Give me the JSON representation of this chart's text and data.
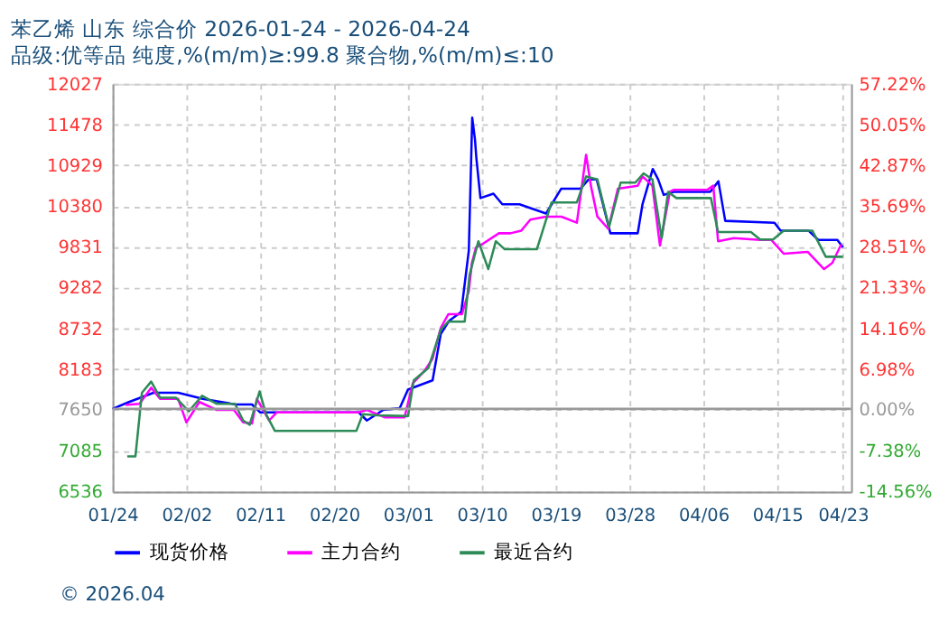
{
  "chart_data": {
    "type": "line",
    "title": "苯乙烯 山东 综合价 2026-01-24 - 2026-04-24",
    "subtitle": "品级:优等品 纯度,%(m/m)≥:99.8 聚合物,%(m/m)≤:10",
    "xlim": [
      "2026-01-24",
      "2026-04-24"
    ],
    "xticks": [
      {
        "value": "2026-01-24",
        "label": "01/24"
      },
      {
        "value": "2026-02-02",
        "label": "02/02"
      },
      {
        "value": "2026-02-11",
        "label": "02/11"
      },
      {
        "value": "2026-02-20",
        "label": "02/20"
      },
      {
        "value": "2026-03-01",
        "label": "03/01"
      },
      {
        "value": "2026-03-10",
        "label": "03/10"
      },
      {
        "value": "2026-03-19",
        "label": "03/19"
      },
      {
        "value": "2026-03-28",
        "label": "03/28"
      },
      {
        "value": "2026-04-06",
        "label": "04/06"
      },
      {
        "value": "2026-04-15",
        "label": "04/15"
      },
      {
        "value": "2026-04-23",
        "label": "04/23"
      }
    ],
    "ylim": [
      6536,
      12027
    ],
    "yticks": [
      6536,
      7085,
      7650,
      8183,
      8732,
      9282,
      9831,
      10380,
      10929,
      11478,
      12027
    ],
    "y2lim": [
      -14.56,
      57.22
    ],
    "y2ticks": [
      {
        "value": -14.56,
        "label": "-14.56%"
      },
      {
        "value": -7.38,
        "label": "-7.38%"
      },
      {
        "value": 0,
        "label": "0.00%"
      },
      {
        "value": 6.98,
        "label": "6.98%"
      },
      {
        "value": 14.16,
        "label": "14.16%"
      },
      {
        "value": 21.33,
        "label": "21.33%"
      },
      {
        "value": 28.51,
        "label": "28.51%"
      },
      {
        "value": 35.69,
        "label": "35.69%"
      },
      {
        "value": 42.87,
        "label": "42.87%"
      },
      {
        "value": 50.05,
        "label": "50.05%"
      },
      {
        "value": 57.22,
        "label": "57.22%"
      }
    ],
    "grid": true,
    "legend": "bottom",
    "line_style": "solid",
    "marker": "none",
    "ref_lines": [
      {
        "axis": "y",
        "value": 7650,
        "color": "#999999"
      }
    ],
    "annotations": [
      "© 2026.04"
    ],
    "series": [
      {
        "name": "现货价格",
        "color": "#0000ff",
        "x": [
          "2026-01-24",
          "2026-01-26",
          "2026-01-29",
          "2026-02-01",
          "2026-02-04",
          "2026-02-08",
          "2026-02-10",
          "2026-02-11",
          "2026-02-23",
          "2026-02-24",
          "2026-02-26",
          "2026-02-28",
          "2026-03-01",
          "2026-03-04",
          "2026-03-05",
          "2026-03-06",
          "2026-03-07T12:00",
          "2026-03-08T10:00",
          "2026-03-08T20:00",
          "2026-03-09T04:00",
          "2026-03-09T08:00",
          "2026-03-09T20:00",
          "2026-03-11T10:00",
          "2026-03-12T12:00",
          "2026-03-14T14:00",
          "2026-03-17T20:00",
          "2026-03-19T16:00",
          "2026-03-22",
          "2026-03-23",
          "2026-03-24",
          "2026-03-25T16:00",
          "2026-03-29",
          "2026-03-29T14:00",
          "2026-03-30T20:00",
          "2026-03-31T12:00",
          "2026-04-01T04:00",
          "2026-04-02T08:00",
          "2026-04-06T20:00",
          "2026-04-07T20:00",
          "2026-04-08T16:00",
          "2026-04-14T16:00",
          "2026-04-15T10:00",
          "2026-04-18T20:00",
          "2026-04-20",
          "2026-04-22T08:00",
          "2026-04-23"
        ],
        "values": [
          7650,
          7743,
          7868,
          7868,
          7785,
          7710,
          7710,
          7603,
          7603,
          7494,
          7636,
          7661,
          7910,
          8035,
          8659,
          8833,
          8958,
          9782,
          11570,
          11278,
          11029,
          10488,
          10547,
          10405,
          10405,
          10280,
          10613,
          10613,
          10738,
          10738,
          10014,
          10014,
          10405,
          10879,
          10738,
          10530,
          10572,
          10572,
          10713,
          10181,
          10156,
          10048,
          10048,
          9924,
          9924,
          9824
        ]
      },
      {
        "name": "主力合约",
        "color": "#ff00ff",
        "x": [
          "2026-01-25T14:00",
          "2026-01-27T07:00",
          "2026-01-28T17:00",
          "2026-01-29T19:00",
          "2026-02-01",
          "2026-02-02",
          "2026-02-03T14:00",
          "2026-02-05T17:00",
          "2026-02-07T19:00",
          "2026-02-08T22:00",
          "2026-02-10",
          "2026-02-10T14:00",
          "2026-02-12T02:00",
          "2026-02-13",
          "2026-02-23",
          "2026-02-24",
          "2026-02-26T05:00",
          "2026-02-28T14:00",
          "2026-03-01T14:00",
          "2026-03-03",
          "2026-03-04",
          "2026-03-05",
          "2026-03-05T22:00",
          "2026-03-07T14:00",
          "2026-03-08T10:00",
          "2026-03-08T19:00",
          "2026-03-09T07:00",
          "2026-03-10",
          "2026-03-12T02:00",
          "2026-03-13T12:00",
          "2026-03-14T19:00",
          "2026-03-15T22:00",
          "2026-03-17T19:00",
          "2026-03-19T17:00",
          "2026-03-21T14:00",
          "2026-03-22T17:00",
          "2026-03-23T07:00",
          "2026-03-24T02:00",
          "2026-03-25T10:00",
          "2026-03-26T14:00",
          "2026-03-29",
          "2026-03-29T14:00",
          "2026-03-30T19:00",
          "2026-03-31T17:00",
          "2026-04-01T22:00",
          "2026-04-02T10:00",
          "2026-04-06T12:00",
          "2026-04-07T05:00",
          "2026-04-07T19:00",
          "2026-04-09T17:00",
          "2026-04-12T22:00",
          "2026-04-14T07:00",
          "2026-04-15T19:00",
          "2026-04-18T17:00",
          "2026-04-20T17:00",
          "2026-04-21T17:00",
          "2026-04-22T19:00"
        ],
        "values": [
          7703,
          7720,
          7935,
          7785,
          7785,
          7470,
          7743,
          7636,
          7636,
          7470,
          7453,
          7785,
          7494,
          7603,
          7603,
          7636,
          7536,
          7536,
          7993,
          8160,
          8327,
          8742,
          8925,
          8925,
          9240,
          9614,
          9824,
          9864,
          10014,
          10014,
          10048,
          10198,
          10238,
          10238,
          10156,
          11071,
          10655,
          10238,
          10073,
          10613,
          10655,
          10780,
          10655,
          9849,
          10572,
          10600,
          10600,
          10655,
          9907,
          9948,
          9924,
          9924,
          9739,
          9764,
          9532,
          9614,
          9864
        ]
      },
      {
        "name": "最近合约",
        "color": "#2e8b57",
        "x": [
          "2026-01-25T19:00",
          "2026-01-26T19:00",
          "2026-01-27T14:00",
          "2026-01-28T17:00",
          "2026-01-29T19:00",
          "2026-01-31T17:00",
          "2026-02-02T07:00",
          "2026-02-03T22:00",
          "2026-02-05T17:00",
          "2026-02-07T22:00",
          "2026-02-08T22:00",
          "2026-02-09T17:00",
          "2026-02-10T22:00",
          "2026-02-11T17:00",
          "2026-02-12T19:00",
          "2026-02-22T17:00",
          "2026-02-23T12:00",
          "2026-02-25T07:00",
          "2026-03-01",
          "2026-03-01T17:00",
          "2026-03-03T12:00",
          "2026-03-05",
          "2026-03-05T22:00",
          "2026-03-07T22:00",
          "2026-03-08T12:00",
          "2026-03-09T14:00",
          "2026-03-10T19:00",
          "2026-03-11T17:00",
          "2026-03-12T19:00",
          "2026-03-16T17:00",
          "2026-03-18T12:00",
          "2026-03-21T14:00",
          "2026-03-22T17:00",
          "2026-03-24T02:00",
          "2026-03-25T12:00",
          "2026-03-26T22:00",
          "2026-03-28T17:00",
          "2026-03-29T17:00",
          "2026-03-30T19:00",
          "2026-03-31T22:00",
          "2026-04-01T17:00",
          "2026-04-02T17:00",
          "2026-04-06T22:00",
          "2026-04-07T19:00",
          "2026-04-11T19:00",
          "2026-04-12T22:00",
          "2026-04-14T12:00",
          "2026-04-15T19:00",
          "2026-04-19T07:00",
          "2026-04-20T22:00",
          "2026-04-23"
        ],
        "values": [
          7012,
          7012,
          7868,
          8018,
          7802,
          7802,
          7618,
          7827,
          7718,
          7718,
          7494,
          7436,
          7885,
          7578,
          7353,
          7353,
          7578,
          7565,
          7553,
          8035,
          8202,
          8717,
          8825,
          8825,
          9450,
          9907,
          9532,
          9907,
          9799,
          9799,
          10430,
          10430,
          10780,
          10738,
          10098,
          10696,
          10696,
          10821,
          10738,
          9948,
          10572,
          10488,
          10488,
          10031,
          10031,
          9930,
          9930,
          10048,
          10048,
          9698,
          9698
        ]
      }
    ]
  }
}
